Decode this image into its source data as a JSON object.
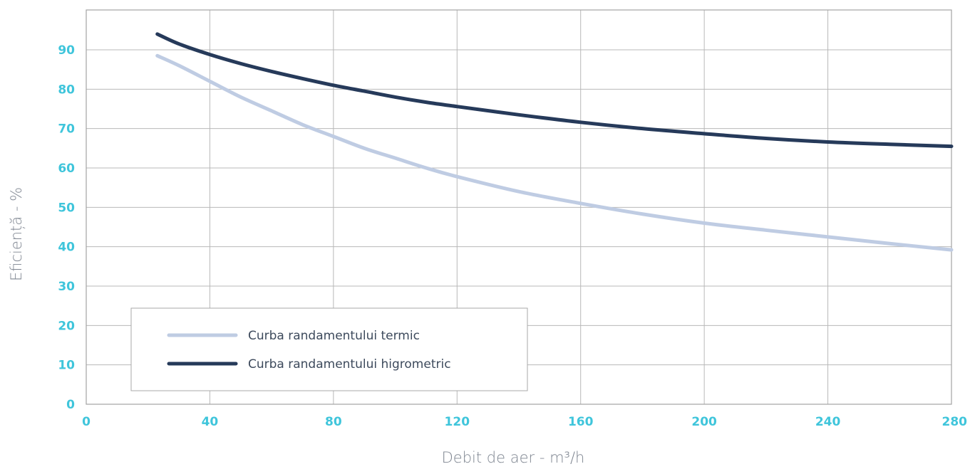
{
  "chart_data": {
    "type": "line",
    "xlabel": "Debit de aer - m³/h",
    "ylabel": "Eficiență - %",
    "xlim": [
      0,
      280
    ],
    "ylim": [
      0,
      100
    ],
    "x_ticks": [
      0,
      40,
      80,
      120,
      160,
      200,
      240,
      280
    ],
    "y_ticks": [
      0,
      10,
      20,
      30,
      40,
      50,
      60,
      70,
      80,
      90
    ],
    "x_tick_labels": [
      "0",
      "40",
      "80",
      "120",
      "160",
      "200",
      "240",
      "280"
    ],
    "y_tick_labels": [
      "0",
      "10",
      "20",
      "30",
      "40",
      "50",
      "60",
      "70",
      "80",
      "90"
    ],
    "grid": true,
    "legend_position": "bottom-left",
    "series": [
      {
        "name": "Curba randamentului termic",
        "color": "#bfcce3",
        "x": [
          23,
          30,
          40,
          50,
          60,
          70,
          80,
          90,
          100,
          110,
          120,
          140,
          160,
          180,
          200,
          220,
          240,
          260,
          280
        ],
        "y": [
          88.5,
          86,
          82,
          78,
          74.5,
          71,
          68,
          65,
          62.5,
          60,
          57.8,
          54,
          51,
          48.3,
          46,
          44.2,
          42.5,
          40.8,
          39.2
        ]
      },
      {
        "name": "Curba randamentului higrometric",
        "color": "#263a5a",
        "x": [
          23,
          30,
          40,
          50,
          60,
          70,
          80,
          90,
          100,
          110,
          120,
          140,
          160,
          180,
          200,
          220,
          240,
          260,
          280
        ],
        "y": [
          94,
          91.5,
          88.8,
          86.5,
          84.5,
          82.7,
          81,
          79.5,
          78,
          76.7,
          75.6,
          73.5,
          71.6,
          70,
          68.7,
          67.5,
          66.6,
          66,
          65.5
        ]
      }
    ]
  },
  "colors": {
    "tick_label": "#3fc5db",
    "axis_title": "#7e8590",
    "grid": "#b8b8b8",
    "frame": "#a3a3a3",
    "legend_border": "#a9a9a9",
    "legend_text": "#3d4a5c"
  }
}
